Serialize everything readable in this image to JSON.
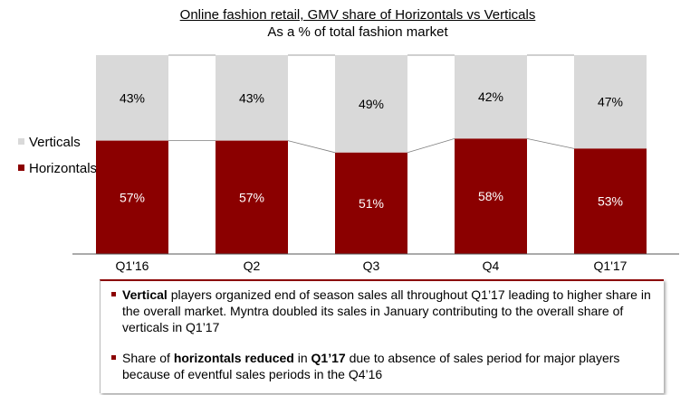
{
  "chart_data": {
    "type": "bar",
    "stacked": true,
    "title": "Online fashion retail, GMV share of Horizontals vs Verticals",
    "subtitle": "As a % of total fashion market",
    "categories": [
      "Q1'16",
      "Q2",
      "Q3",
      "Q4",
      "Q1'17"
    ],
    "series": [
      {
        "name": "Horizontals",
        "values": [
          57,
          57,
          51,
          58,
          53
        ],
        "labels": [
          "57%",
          "57%",
          "51%",
          "58%",
          "53%"
        ],
        "color": "#8b0000"
      },
      {
        "name": "Verticals",
        "values": [
          43,
          43,
          49,
          42,
          47
        ],
        "labels": [
          "43%",
          "43%",
          "49%",
          "42%",
          "47%"
        ],
        "color": "#d9d9d9"
      }
    ],
    "ylim": [
      0,
      100
    ],
    "legend_position": "left",
    "grid": false
  },
  "notes": [
    {
      "parts": [
        {
          "text": "Vertical",
          "bold": true
        },
        {
          "text": " players organized end of season sales all throughout Q1’17 leading to higher share in the overall market. Myntra doubled its sales in January contributing to the overall share of verticals in Q1’17",
          "bold": false
        }
      ]
    },
    {
      "parts": [
        {
          "text": "Share of ",
          "bold": false
        },
        {
          "text": "horizontals reduced",
          "bold": true
        },
        {
          "text": " in ",
          "bold": false
        },
        {
          "text": "Q1’17",
          "bold": true
        },
        {
          "text": " due to absence of sales period for major players because of eventful sales periods in the Q4’16",
          "bold": false
        }
      ]
    }
  ],
  "colors": {
    "accent": "#8b0000",
    "verticals": "#d9d9d9"
  }
}
